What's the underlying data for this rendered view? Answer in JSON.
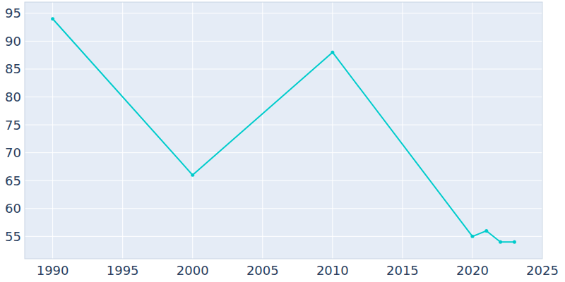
{
  "chart_data": {
    "type": "line",
    "x": [
      1990,
      2000,
      2010,
      2020,
      2021,
      2022,
      2023
    ],
    "values": [
      94,
      66,
      88,
      55,
      56,
      54,
      54
    ],
    "color": "#00cccc",
    "marker": "circle",
    "xlim": [
      1988,
      2025
    ],
    "xticks": [
      1990,
      1995,
      2000,
      2005,
      2010,
      2015,
      2020,
      2025
    ],
    "ylim": [
      51,
      97
    ],
    "yticks": [
      55,
      60,
      65,
      70,
      75,
      80,
      85,
      90,
      95
    ],
    "grid": true
  }
}
